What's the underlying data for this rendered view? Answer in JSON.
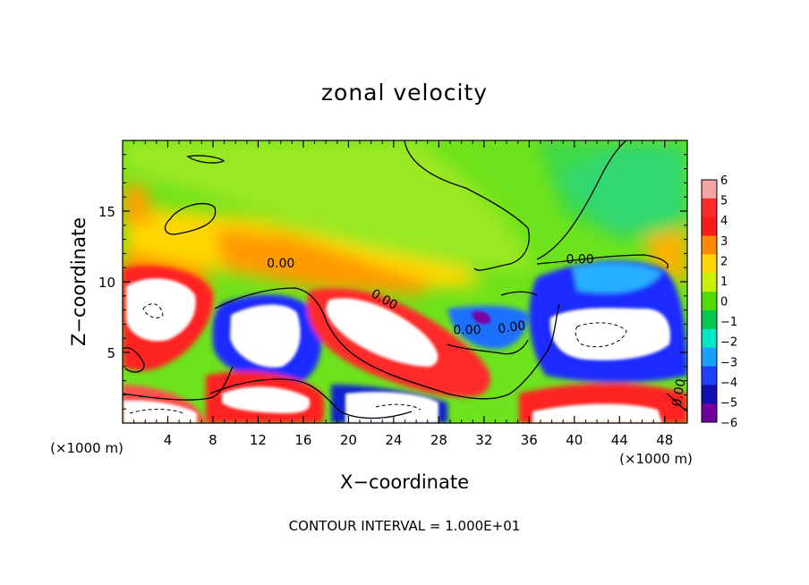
{
  "chart_data": {
    "type": "heatmap",
    "title": "zonal velocity",
    "xlabel": "X−coordinate",
    "ylabel": "Z−coordinate",
    "x_unit": "(×1000 m)",
    "z_unit": "(×1000 m)",
    "xlim": [
      0,
      50
    ],
    "ylim": [
      0,
      20
    ],
    "x_ticks": [
      "4",
      "8",
      "12",
      "16",
      "20",
      "24",
      "28",
      "32",
      "36",
      "40",
      "44",
      "48"
    ],
    "y_ticks": [
      "5",
      "10",
      "15"
    ],
    "colorbar": {
      "ticks": [
        "6",
        "5",
        "4",
        "3",
        "2",
        "1",
        "0",
        "−1",
        "−2",
        "−3",
        "−4",
        "−5",
        "−6"
      ],
      "range": [
        -6,
        6
      ],
      "colors": [
        "#f4a3a3",
        "#ff2a2a",
        "#ff1a1a",
        "#ff8a00",
        "#ffd400",
        "#c8f000",
        "#50dc00",
        "#00c850",
        "#00e8c8",
        "#1aa0ff",
        "#2040ff",
        "#1010b0",
        "#7000a0"
      ]
    },
    "contour_labels": [
      "0.00",
      "0.00",
      "0.00",
      "0.00",
      "0.00",
      "0.00"
    ],
    "footer": "CONTOUR INTERVAL = 1.000E+01"
  }
}
